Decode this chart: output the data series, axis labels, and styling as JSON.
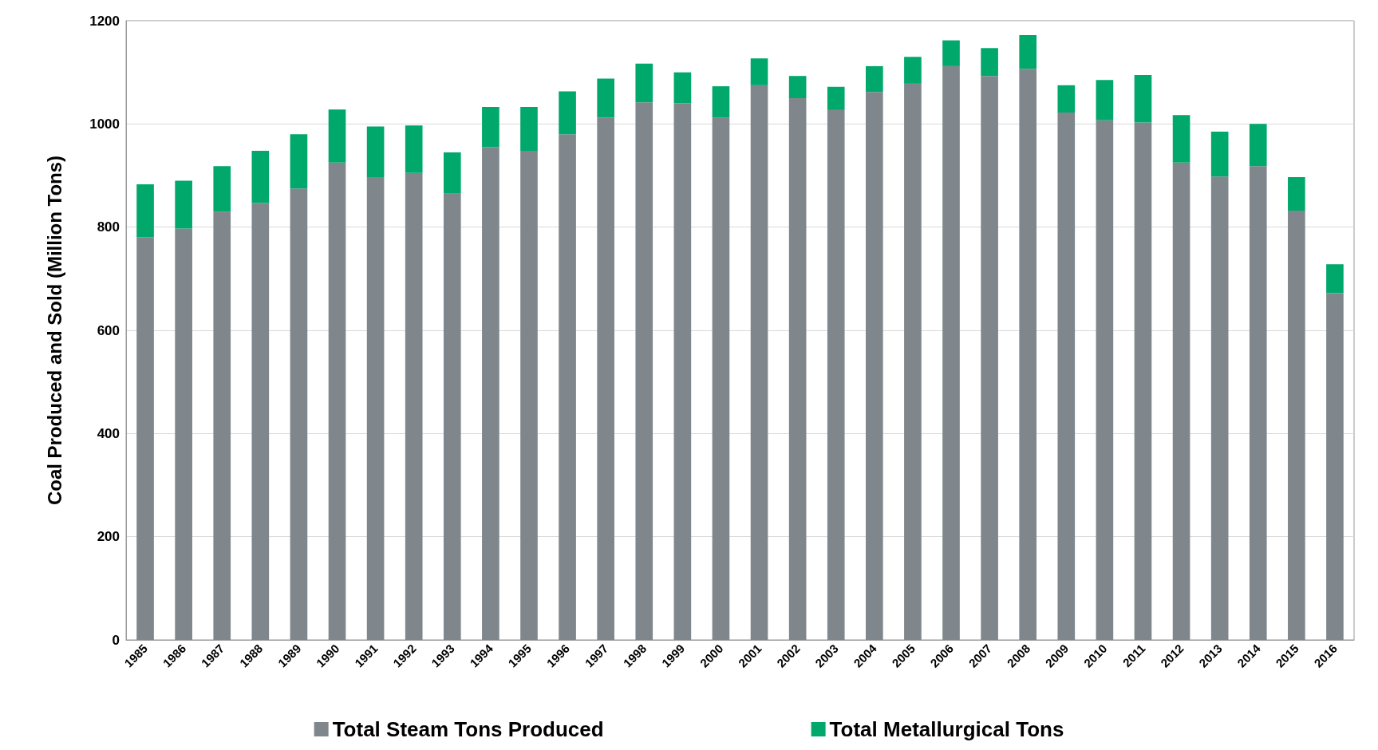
{
  "chart_data": {
    "type": "bar",
    "stacked": true,
    "ylabel": "Coal Produced and Sold (Million Tons)",
    "categories": [
      "1985",
      "1986",
      "1987",
      "1988",
      "1989",
      "1990",
      "1991",
      "1992",
      "1993",
      "1994",
      "1995",
      "1996",
      "1997",
      "1998",
      "1999",
      "2000",
      "2001",
      "2002",
      "2003",
      "2004",
      "2005",
      "2006",
      "2007",
      "2008",
      "2009",
      "2010",
      "2011",
      "2012",
      "2013",
      "2014",
      "2015",
      "2016"
    ],
    "series": [
      {
        "name": "Total Steam Tons Produced",
        "color": "#7f878c",
        "values": [
          780,
          797,
          830,
          847,
          875,
          925,
          897,
          905,
          865,
          955,
          948,
          980,
          1012,
          1042,
          1040,
          1012,
          1075,
          1050,
          1027,
          1062,
          1078,
          1112,
          1093,
          1107,
          1022,
          1007,
          1003,
          925,
          898,
          918,
          832,
          672
        ]
      },
      {
        "name": "Total Metallurgical Tons",
        "color": "#00a86b",
        "values": [
          103,
          93,
          88,
          101,
          105,
          103,
          98,
          92,
          80,
          78,
          85,
          83,
          76,
          75,
          60,
          61,
          52,
          43,
          45,
          50,
          52,
          50,
          54,
          65,
          53,
          78,
          92,
          92,
          87,
          82,
          65,
          56
        ]
      }
    ],
    "ylim": [
      0,
      1200
    ],
    "yticks": [
      0,
      200,
      400,
      600,
      800,
      1000,
      1200
    ],
    "grid": "y",
    "legend": "bottom"
  }
}
